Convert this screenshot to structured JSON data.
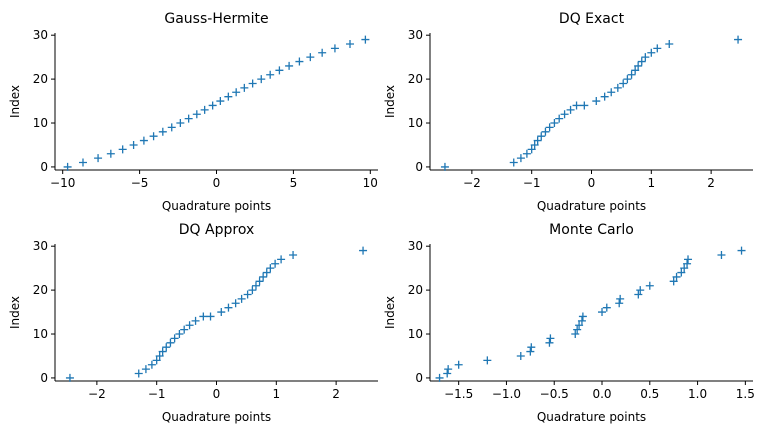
{
  "chart_data": [
    {
      "type": "scatter",
      "title": "Gauss-Hermite",
      "xlabel": "Quadrature points",
      "ylabel": "Index",
      "xlim": [
        -10.5,
        10.5
      ],
      "ylim": [
        -0.7,
        30.5
      ],
      "xticks": [
        -10,
        -5,
        0,
        5,
        10
      ],
      "xtick_labels": [
        "−10",
        "−5",
        "0",
        "5",
        "10"
      ],
      "yticks": [
        0,
        10,
        20,
        30
      ],
      "ytick_labels": [
        "0",
        "10",
        "20",
        "30"
      ],
      "marker": "+",
      "color": "#1f77b4",
      "grid": false,
      "x": [
        -9.68,
        -8.68,
        -7.7,
        -6.87,
        -6.1,
        -5.39,
        -4.72,
        -4.09,
        -3.49,
        -2.91,
        -2.35,
        -1.81,
        -1.28,
        -0.77,
        -0.25,
        0.25,
        0.77,
        1.28,
        1.81,
        2.35,
        2.91,
        3.49,
        4.09,
        4.72,
        5.39,
        6.1,
        6.87,
        7.7,
        8.68,
        9.68
      ],
      "y": [
        0,
        1,
        2,
        3,
        4,
        5,
        6,
        7,
        8,
        9,
        10,
        11,
        12,
        13,
        14,
        15,
        16,
        17,
        18,
        19,
        20,
        21,
        22,
        23,
        24,
        25,
        26,
        27,
        28,
        29
      ]
    },
    {
      "type": "scatter",
      "title": "DQ Exact",
      "xlabel": "Quadrature points",
      "ylabel": "Index",
      "xlim": [
        -2.7,
        2.7
      ],
      "ylim": [
        -0.7,
        30.5
      ],
      "xticks": [
        -2,
        -1,
        0,
        1,
        2
      ],
      "xtick_labels": [
        "−2",
        "−1",
        "0",
        "1",
        "2"
      ],
      "yticks": [
        0,
        10,
        20,
        30
      ],
      "ytick_labels": [
        "0",
        "10",
        "20",
        "30"
      ],
      "marker": "+",
      "color": "#1f77b4",
      "grid": false,
      "x": [
        -2.45,
        -1.3,
        -1.18,
        -1.08,
        -1.0,
        -0.95,
        -0.9,
        -0.84,
        -0.77,
        -0.7,
        -0.62,
        -0.54,
        -0.45,
        -0.35,
        -0.25,
        -0.12,
        0.08,
        0.22,
        0.33,
        0.44,
        0.53,
        0.6,
        0.67,
        0.73,
        0.78,
        0.84,
        0.9,
        1.0,
        1.1,
        1.3,
        2.45
      ],
      "y": [
        0,
        1,
        2,
        3,
        4,
        5,
        6,
        7,
        8,
        9,
        10,
        11,
        12,
        13,
        14,
        14,
        15,
        16,
        17,
        18,
        19,
        20,
        21,
        22,
        23,
        24,
        25,
        26,
        27,
        28,
        29
      ]
    },
    {
      "type": "scatter",
      "title": "DQ Approx",
      "xlabel": "Quadrature points",
      "ylabel": "Index",
      "xlim": [
        -2.7,
        2.7
      ],
      "ylim": [
        -0.7,
        30.5
      ],
      "xticks": [
        -2,
        -1,
        0,
        1,
        2
      ],
      "xtick_labels": [
        "−2",
        "−1",
        "0",
        "1",
        "2"
      ],
      "yticks": [
        0,
        10,
        20,
        30
      ],
      "ytick_labels": [
        "0",
        "10",
        "20",
        "30"
      ],
      "marker": "+",
      "color": "#1f77b4",
      "grid": false,
      "x": [
        -2.45,
        -1.3,
        -1.18,
        -1.08,
        -1.0,
        -0.95,
        -0.9,
        -0.84,
        -0.77,
        -0.7,
        -0.62,
        -0.54,
        -0.45,
        -0.35,
        -0.22,
        -0.1,
        0.08,
        0.2,
        0.32,
        0.42,
        0.52,
        0.6,
        0.66,
        0.72,
        0.78,
        0.84,
        0.9,
        0.98,
        1.08,
        1.28,
        2.45
      ],
      "y": [
        0,
        1,
        2,
        3,
        4,
        5,
        6,
        7,
        8,
        9,
        10,
        11,
        12,
        13,
        14,
        14,
        15,
        16,
        17,
        18,
        19,
        20,
        21,
        22,
        23,
        24,
        25,
        26,
        27,
        28,
        29
      ]
    },
    {
      "type": "scatter",
      "title": "Monte Carlo",
      "xlabel": "Quadrature points",
      "ylabel": "Index",
      "xlim": [
        -1.8,
        1.58
      ],
      "ylim": [
        -0.7,
        30.5
      ],
      "xticks": [
        -1.5,
        -1.0,
        -0.5,
        0.0,
        0.5,
        1.0,
        1.5
      ],
      "xtick_labels": [
        "−1.5",
        "−1.0",
        "−0.5",
        "0.0",
        "0.5",
        "1.0",
        "1.5"
      ],
      "yticks": [
        0,
        10,
        20,
        30
      ],
      "ytick_labels": [
        "0",
        "10",
        "20",
        "30"
      ],
      "marker": "+",
      "color": "#1f77b4",
      "grid": false,
      "x": [
        -1.7,
        -1.62,
        -1.61,
        -1.5,
        -1.2,
        -0.85,
        -0.75,
        -0.74,
        -0.55,
        -0.54,
        -0.28,
        -0.26,
        -0.24,
        -0.21,
        -0.2,
        0.0,
        0.05,
        0.18,
        0.19,
        0.38,
        0.4,
        0.5,
        0.75,
        0.78,
        0.83,
        0.86,
        0.89,
        0.9,
        1.25,
        1.46
      ],
      "y": [
        0,
        1,
        2,
        3,
        4,
        5,
        6,
        7,
        8,
        9,
        10,
        11,
        12,
        13,
        14,
        15,
        16,
        17,
        18,
        19,
        20,
        21,
        22,
        23,
        24,
        25,
        26,
        27,
        28,
        29
      ]
    }
  ]
}
